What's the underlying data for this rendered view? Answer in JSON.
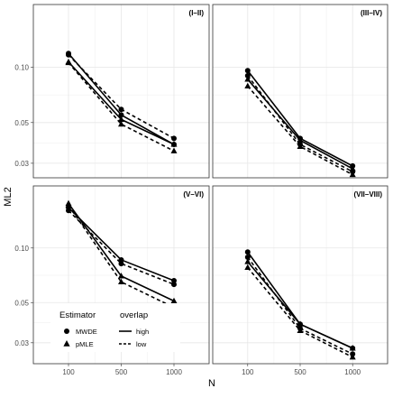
{
  "chart_data": {
    "type": "line",
    "title": "",
    "xlabel": "N",
    "ylabel": "ML2",
    "y_scale": "log",
    "grid": true,
    "categories": [
      "100",
      "500",
      "1000"
    ],
    "y_ticks": [
      0.03,
      0.05,
      0.1
    ],
    "y_tick_labels": [
      "0.03",
      "0.05",
      "0.10"
    ],
    "legend": {
      "placement": "bottom-left",
      "estimator_title": "Estimator",
      "estimator_items": [
        {
          "label": "MWDE",
          "shape": "circle"
        },
        {
          "label": "pMLE",
          "shape": "triangle"
        }
      ],
      "overlap_title": "overlap",
      "overlap_items": [
        {
          "label": "high",
          "line": "solid"
        },
        {
          "label": "low",
          "line": "dashed"
        }
      ]
    },
    "panels": [
      {
        "tag": "(I–II)",
        "ylim": [
          0.025,
          0.22
        ],
        "series": [
          {
            "estimator": "MWDE",
            "overlap": "high",
            "values": [
              0.119,
              0.055,
              0.038
            ]
          },
          {
            "estimator": "MWDE",
            "overlap": "low",
            "values": [
              0.117,
              0.059,
              0.041
            ]
          },
          {
            "estimator": "pMLE",
            "overlap": "high",
            "values": [
              0.107,
              0.052,
              0.038
            ]
          },
          {
            "estimator": "pMLE",
            "overlap": "low",
            "values": [
              0.106,
              0.049,
              0.035
            ]
          }
        ]
      },
      {
        "tag": "(III–IV)",
        "ylim": [
          0.025,
          0.22
        ],
        "series": [
          {
            "estimator": "MWDE",
            "overlap": "high",
            "values": [
              0.096,
              0.041,
              0.029
            ]
          },
          {
            "estimator": "MWDE",
            "overlap": "low",
            "values": [
              0.09,
              0.038,
              0.027
            ]
          },
          {
            "estimator": "pMLE",
            "overlap": "high",
            "values": [
              0.086,
              0.04,
              0.028
            ]
          },
          {
            "estimator": "pMLE",
            "overlap": "low",
            "values": [
              0.079,
              0.037,
              0.026
            ]
          }
        ]
      },
      {
        "tag": "(V–VI)",
        "ylim": [
          0.023,
          0.22
        ],
        "series": [
          {
            "estimator": "MWDE",
            "overlap": "high",
            "values": [
              0.167,
              0.086,
              0.066
            ]
          },
          {
            "estimator": "MWDE",
            "overlap": "low",
            "values": [
              0.161,
              0.082,
              0.063
            ]
          },
          {
            "estimator": "pMLE",
            "overlap": "high",
            "values": [
              0.176,
              0.07,
              0.051
            ]
          },
          {
            "estimator": "pMLE",
            "overlap": "low",
            "values": [
              0.172,
              0.065,
              0.047
            ]
          }
        ]
      },
      {
        "tag": "(VII–VIII)",
        "ylim": [
          0.023,
          0.22
        ],
        "series": [
          {
            "estimator": "MWDE",
            "overlap": "high",
            "values": [
              0.095,
              0.038,
              0.028
            ]
          },
          {
            "estimator": "MWDE",
            "overlap": "low",
            "values": [
              0.089,
              0.036,
              0.026
            ]
          },
          {
            "estimator": "pMLE",
            "overlap": "high",
            "values": [
              0.084,
              0.038,
              0.028
            ]
          },
          {
            "estimator": "pMLE",
            "overlap": "low",
            "values": [
              0.078,
              0.035,
              0.025
            ]
          }
        ]
      }
    ]
  }
}
